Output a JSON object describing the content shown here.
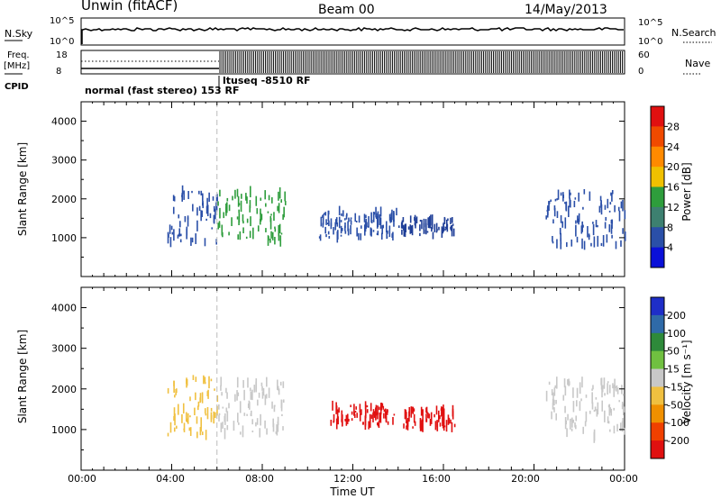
{
  "header": {
    "station": "Unwin (fitACF)",
    "beam": "Beam 00",
    "date": "14/May/2013"
  },
  "top_panels": {
    "nsky_label": "N.Sky",
    "nsky_ticks": [
      "10^5",
      "10^0"
    ],
    "nsearch_label": "N.Search",
    "nsearch_ticks": [
      "10^5",
      "10^0"
    ],
    "freq_label_line1": "Freq.",
    "freq_label_line2": "[MHz]",
    "freq_ticks": [
      "18",
      "8"
    ],
    "nave_label": "Nave",
    "nave_ticks": [
      "60",
      "0"
    ],
    "cpid_label": "CPID",
    "cpid_mode_1": "normal (fast stereo) 153 RF",
    "cpid_mode_2": "ltuseq -8510 RF"
  },
  "power_colorbar": {
    "label": "Power [dB]",
    "ticks": [
      "28",
      "24",
      "20",
      "16",
      "12",
      "8",
      "4"
    ],
    "colors": [
      "#e01010",
      "#f04a00",
      "#ff8a00",
      "#f0c000",
      "#2e9d3c",
      "#3d8070",
      "#2a4fa8",
      "#0a10d8"
    ]
  },
  "velocity_colorbar": {
    "label": "Velocity [m s⁻¹]",
    "ticks": [
      "200",
      "100",
      "50",
      "15",
      "-15",
      "-50",
      "-100",
      "-200"
    ],
    "colors": [
      "#1e2ec8",
      "#2f6aa8",
      "#2e8a3a",
      "#70c040",
      "#c8c8c8",
      "#f0c040",
      "#f09000",
      "#f04000",
      "#e01010"
    ]
  },
  "x_axis_label": "Time UT",
  "chart_data": [
    {
      "type": "heatmap",
      "title": "Power",
      "xlabel": "Time UT",
      "ylabel": "Slant Range [km]",
      "x_ticks": [
        "00:00",
        "04:00",
        "08:00",
        "12:00",
        "16:00",
        "20:00",
        "00:00"
      ],
      "y_ticks": [
        "1000",
        "2000",
        "3000",
        "4000"
      ],
      "xlim": [
        0,
        24
      ],
      "ylim": [
        0,
        4500
      ],
      "regions": [
        {
          "t0": 3.8,
          "t1": 6.0,
          "r0": 850,
          "r1": 2300,
          "color": "#2a4fa8"
        },
        {
          "t0": 6.0,
          "t1": 9.0,
          "r0": 900,
          "r1": 2200,
          "color": "#2e9d3c"
        },
        {
          "t0": 10.5,
          "t1": 14.0,
          "r0": 1000,
          "r1": 1700,
          "color": "#2a4fa8"
        },
        {
          "t0": 14.0,
          "t1": 16.5,
          "r0": 1050,
          "r1": 1500,
          "color": "#1f3f98"
        },
        {
          "t0": 20.5,
          "t1": 24.0,
          "r0": 800,
          "r1": 2200,
          "color": "#2a4fa8"
        }
      ],
      "dashed_time": 6.0
    },
    {
      "type": "heatmap",
      "title": "Velocity",
      "xlabel": "Time UT",
      "ylabel": "Slant Range [km]",
      "x_ticks": [
        "00:00",
        "04:00",
        "08:00",
        "12:00",
        "16:00",
        "20:00",
        "00:00"
      ],
      "y_ticks": [
        "1000",
        "2000",
        "3000",
        "4000"
      ],
      "xlim": [
        0,
        24
      ],
      "ylim": [
        0,
        4500
      ],
      "regions": [
        {
          "t0": 3.8,
          "t1": 6.0,
          "r0": 850,
          "r1": 2300,
          "color": "#f0c040"
        },
        {
          "t0": 6.0,
          "t1": 9.0,
          "r0": 900,
          "r1": 2200,
          "color": "#c8c8c8"
        },
        {
          "t0": 11.0,
          "t1": 13.8,
          "r0": 1100,
          "r1": 1600,
          "color": "#e01010"
        },
        {
          "t0": 14.2,
          "t1": 16.5,
          "r0": 1050,
          "r1": 1500,
          "color": "#e01010"
        },
        {
          "t0": 20.5,
          "t1": 24.0,
          "r0": 800,
          "r1": 2200,
          "color": "#c8c8c8"
        }
      ],
      "dashed_time": 6.0
    }
  ]
}
